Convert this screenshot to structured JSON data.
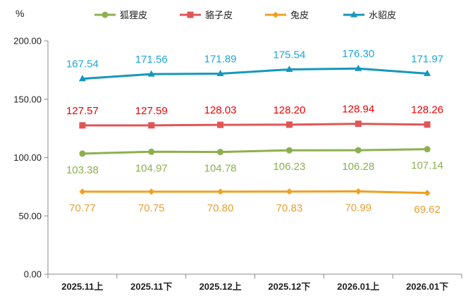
{
  "chart_data": {
    "type": "line",
    "title": "",
    "ylabel": "%",
    "xlabel": "",
    "ylim": [
      0,
      200
    ],
    "yticks": [
      "0.00",
      "50.00",
      "100.00",
      "150.00",
      "200.00"
    ],
    "grid": false,
    "legend_position": "top",
    "categories": [
      "2025.11上",
      "2025.11下",
      "2025.12上",
      "2025.12下",
      "2026.01上",
      "2026.01下"
    ],
    "series": [
      {
        "name": "狐狸皮",
        "color": "#8db04f",
        "marker": "circle",
        "values": [
          103.38,
          104.97,
          104.78,
          106.23,
          106.28,
          107.14
        ],
        "labels": [
          "103.38",
          "104.97",
          "104.78",
          "106.23",
          "106.28",
          "107.14"
        ],
        "label_position": "below"
      },
      {
        "name": "貉子皮",
        "color": "#e05656",
        "marker": "square",
        "values": [
          127.57,
          127.59,
          128.03,
          128.2,
          128.94,
          128.26
        ],
        "labels": [
          "127.57",
          "127.59",
          "128.03",
          "128.20",
          "128.94",
          "128.26"
        ],
        "label_color": "#ee0000",
        "label_position": "above"
      },
      {
        "name": "兔皮",
        "color": "#f0a020",
        "marker": "diamond",
        "values": [
          70.77,
          70.75,
          70.8,
          70.83,
          70.99,
          69.62
        ],
        "labels": [
          "70.77",
          "70.75",
          "70.80",
          "70.83",
          "70.99",
          "69.62"
        ],
        "label_color": "#e8a033",
        "label_position": "below"
      },
      {
        "name": "水貂皮",
        "color": "#1597bd",
        "marker": "triangle",
        "values": [
          167.54,
          171.56,
          171.89,
          175.54,
          176.3,
          171.97
        ],
        "labels": [
          "167.54",
          "171.56",
          "171.89",
          "175.54",
          "176.30",
          "171.97"
        ],
        "label_color": "#1ca7dc",
        "label_position": "above"
      }
    ]
  }
}
